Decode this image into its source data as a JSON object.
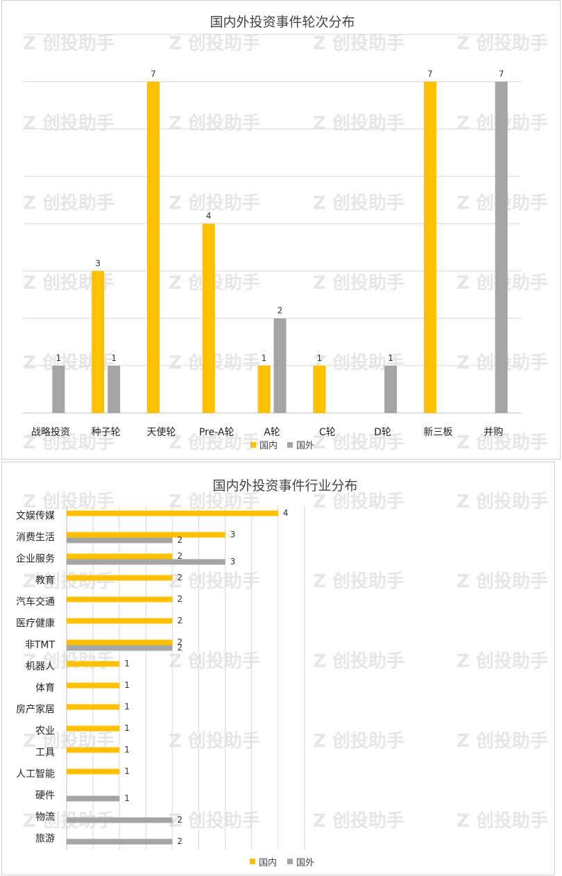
{
  "colors": {
    "domestic": "#FFC000",
    "foreign": "#A5A5A5",
    "grid": "#D9D9D9",
    "axis": "#BFBFBF"
  },
  "watermark": "创投助手",
  "chart_data": [
    {
      "type": "bar",
      "orientation": "vertical",
      "title": "国内外投资事件轮次分布",
      "categories": [
        "战略投资",
        "种子轮",
        "天使轮",
        "Pre-A轮",
        "A轮",
        "C轮",
        "D轮",
        "新三板",
        "并购"
      ],
      "series": [
        {
          "name": "国内",
          "values": [
            0,
            3,
            7,
            4,
            1,
            1,
            0,
            7,
            0
          ]
        },
        {
          "name": "国外",
          "values": [
            1,
            1,
            0,
            0,
            2,
            0,
            1,
            0,
            7
          ]
        }
      ],
      "ylim": [
        0,
        8
      ],
      "grid": true,
      "legend": "bottom"
    },
    {
      "type": "bar",
      "orientation": "horizontal",
      "title": "国内外投资事件行业分布",
      "categories": [
        "文娱传媒",
        "消费生活",
        "企业服务",
        "教育",
        "汽车交通",
        "医疗健康",
        "非TMT",
        "机器人",
        "体育",
        "房产家居",
        "农业",
        "工具",
        "人工智能",
        "硬件",
        "物流",
        "旅游"
      ],
      "series": [
        {
          "name": "国内",
          "values": [
            4,
            3,
            2,
            2,
            2,
            2,
            2,
            1,
            1,
            1,
            1,
            1,
            1,
            0,
            0,
            0
          ]
        },
        {
          "name": "国外",
          "values": [
            0,
            2,
            3,
            0,
            0,
            0,
            2,
            0,
            0,
            0,
            0,
            0,
            0,
            1,
            2,
            2
          ]
        }
      ],
      "xlim": [
        0,
        4.5
      ],
      "grid": true,
      "legend": "bottom"
    }
  ]
}
